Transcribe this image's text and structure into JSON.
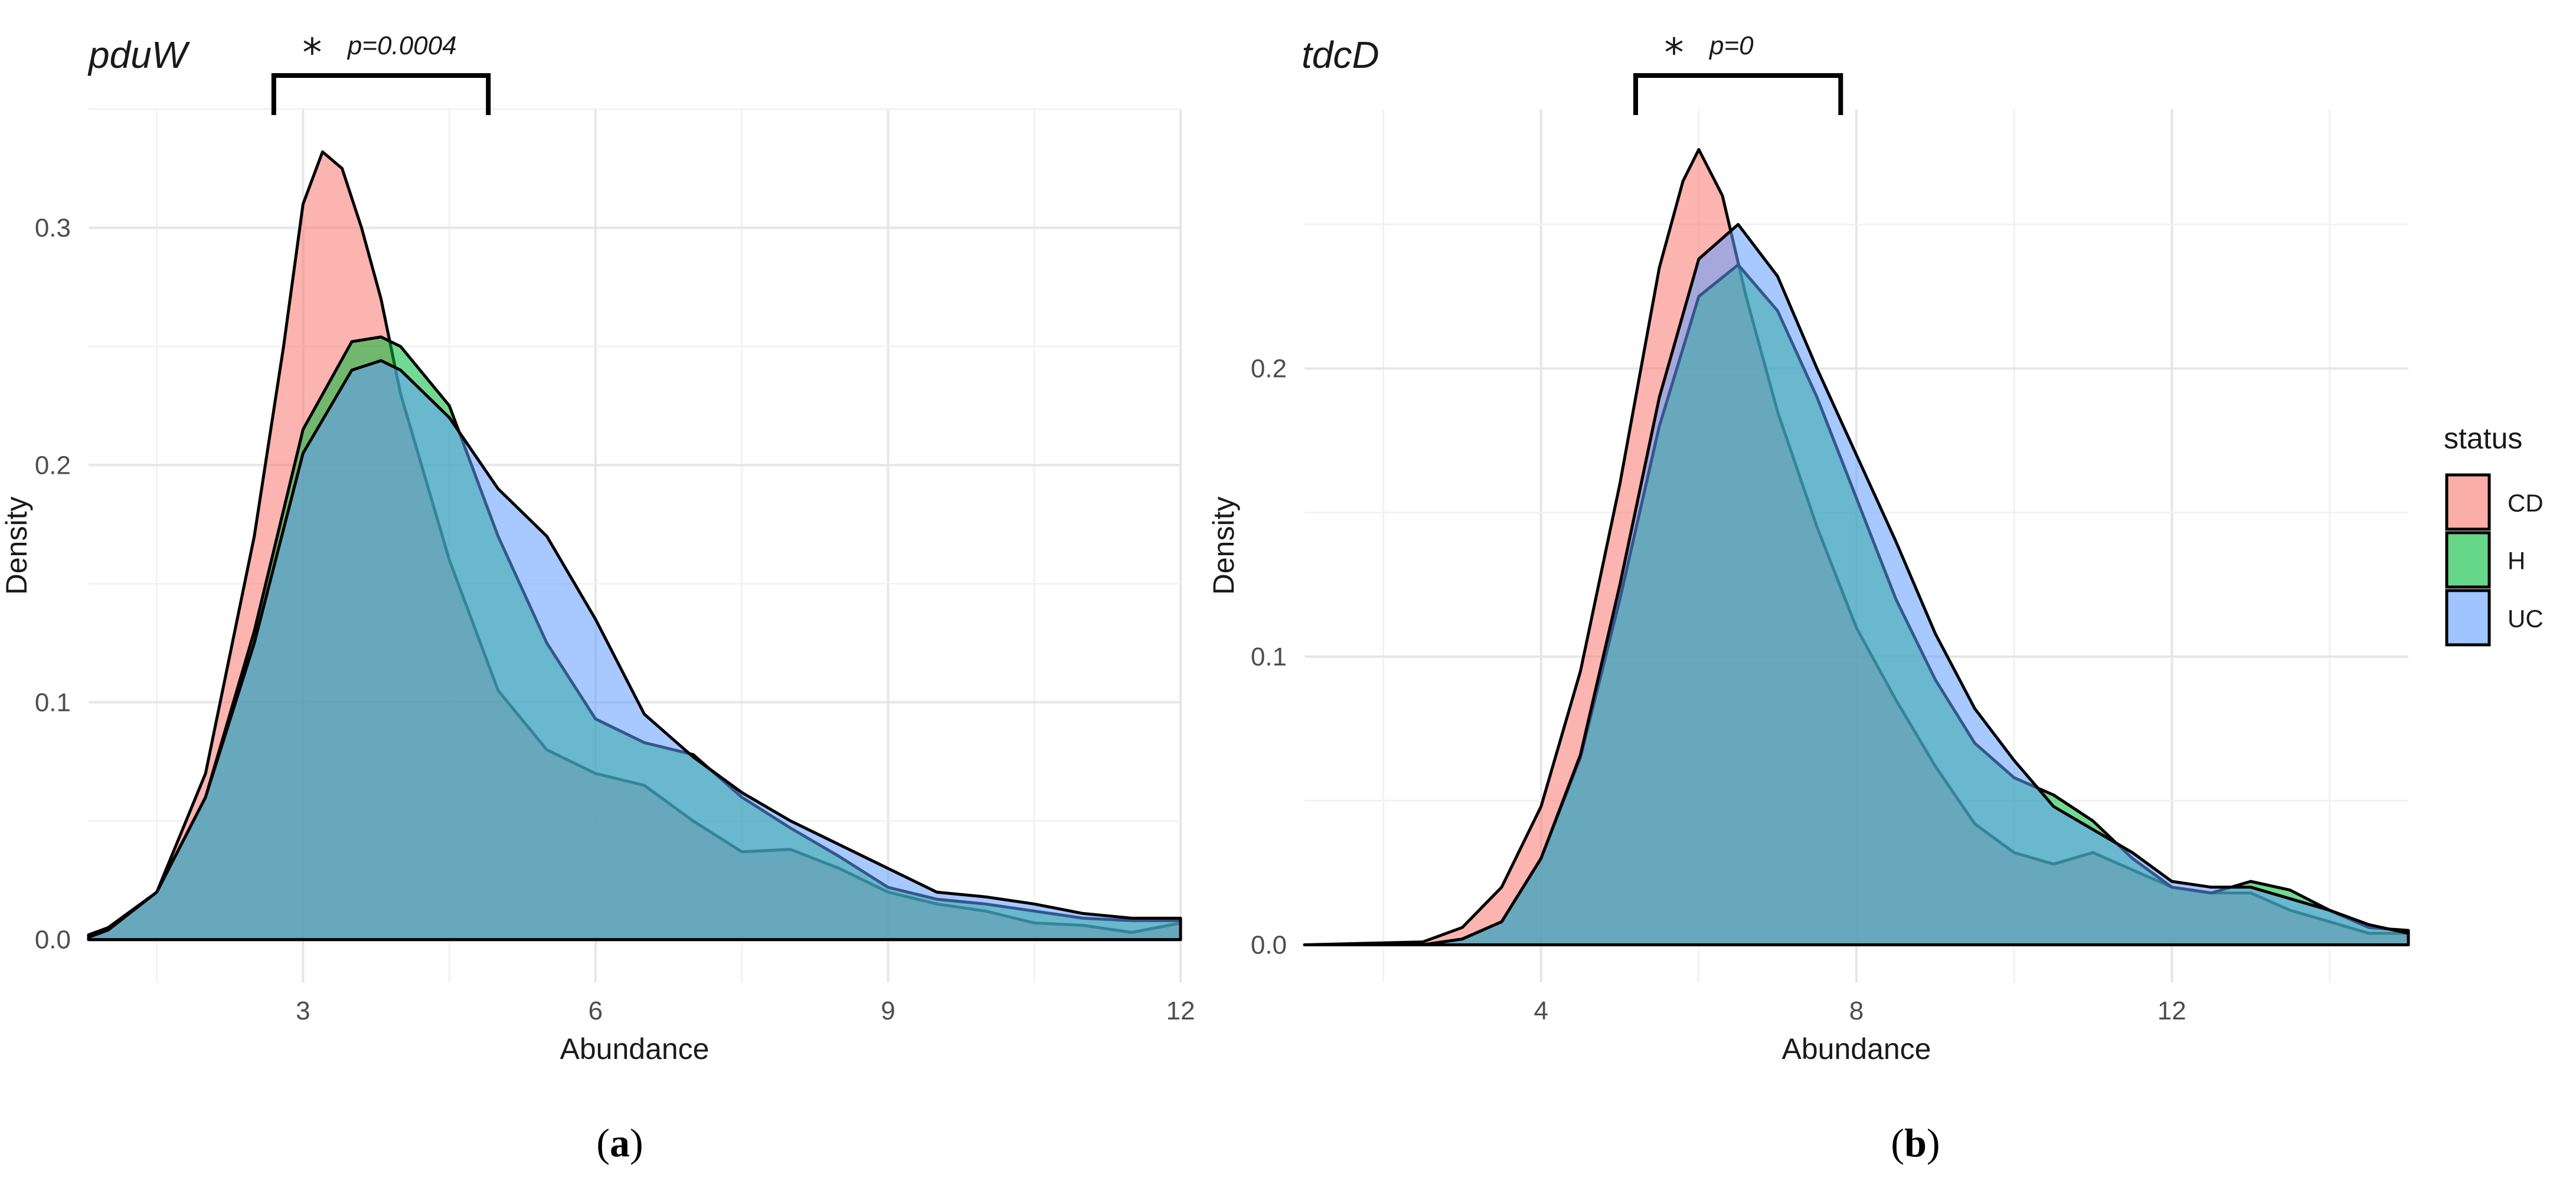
{
  "legend": {
    "title": "status",
    "items": [
      {
        "label": "CD",
        "color": "#F8766D"
      },
      {
        "label": "H",
        "color": "#00BA38"
      },
      {
        "label": "UC",
        "color": "#619CFF"
      }
    ],
    "placement": "right"
  },
  "chart_data": [
    {
      "type": "area",
      "subtype": "density",
      "title": "pduW",
      "xlabel": "Abundance",
      "ylabel": "Density",
      "xlim": [
        0.8,
        12.0
      ],
      "ylim": [
        -0.018,
        0.35
      ],
      "xticks": [
        3,
        6,
        9,
        12
      ],
      "xtick_labels": [
        "3",
        "6",
        "9",
        "12"
      ],
      "yticks": [
        0.0,
        0.1,
        0.2,
        0.3
      ],
      "ytick_labels": [
        "0.0",
        "0.1",
        "0.2",
        "0.3"
      ],
      "annotation": {
        "star": "*",
        "text": "p=0.0004",
        "bracket_x": [
          2.7,
          4.9
        ],
        "bracket_y": 0.347
      },
      "caption": {
        "open": "(",
        "letter": "a",
        "close": ")"
      },
      "series": [
        {
          "name": "CD",
          "x": [
            0.8,
            1.0,
            1.5,
            2.0,
            2.5,
            2.8,
            3.0,
            3.2,
            3.4,
            3.6,
            3.8,
            4.0,
            4.5,
            5.0,
            5.5,
            6.0,
            6.5,
            7.0,
            7.5,
            8.0,
            8.5,
            9.0,
            9.5,
            10.0,
            10.5,
            11.0,
            11.5,
            12.0
          ],
          "y": [
            0.002,
            0.005,
            0.02,
            0.07,
            0.17,
            0.25,
            0.31,
            0.332,
            0.325,
            0.3,
            0.27,
            0.23,
            0.16,
            0.105,
            0.08,
            0.07,
            0.065,
            0.05,
            0.037,
            0.038,
            0.03,
            0.02,
            0.015,
            0.012,
            0.007,
            0.006,
            0.003,
            0.007
          ]
        },
        {
          "name": "H",
          "x": [
            0.8,
            1.0,
            1.5,
            2.0,
            2.5,
            3.0,
            3.5,
            3.8,
            4.0,
            4.5,
            5.0,
            5.5,
            6.0,
            6.5,
            7.0,
            7.5,
            8.0,
            8.5,
            9.0,
            9.5,
            10.0,
            10.5,
            11.0,
            11.5,
            12.0
          ],
          "y": [
            0.001,
            0.004,
            0.02,
            0.06,
            0.13,
            0.215,
            0.252,
            0.254,
            0.25,
            0.225,
            0.17,
            0.125,
            0.093,
            0.083,
            0.078,
            0.06,
            0.047,
            0.035,
            0.022,
            0.017,
            0.015,
            0.012,
            0.009,
            0.008,
            0.008
          ]
        },
        {
          "name": "UC",
          "x": [
            0.8,
            1.0,
            1.5,
            2.0,
            2.5,
            3.0,
            3.5,
            3.8,
            4.0,
            4.5,
            5.0,
            5.5,
            6.0,
            6.5,
            7.0,
            7.5,
            8.0,
            8.5,
            9.0,
            9.5,
            10.0,
            10.5,
            11.0,
            11.5,
            12.0
          ],
          "y": [
            0.001,
            0.004,
            0.02,
            0.06,
            0.125,
            0.205,
            0.24,
            0.244,
            0.24,
            0.22,
            0.19,
            0.17,
            0.135,
            0.095,
            0.077,
            0.062,
            0.05,
            0.04,
            0.03,
            0.02,
            0.018,
            0.015,
            0.011,
            0.009,
            0.009
          ]
        }
      ]
    },
    {
      "type": "area",
      "subtype": "density",
      "title": "tdcD",
      "xlabel": "Abundance",
      "ylabel": "Density",
      "xlim": [
        1.0,
        15.0
      ],
      "ylim": [
        -0.013,
        0.29
      ],
      "xticks": [
        4,
        8,
        12
      ],
      "xtick_labels": [
        "4",
        "8",
        "12"
      ],
      "yticks": [
        0.0,
        0.1,
        0.2
      ],
      "ytick_labels": [
        "0.0",
        "0.1",
        "0.2"
      ],
      "annotation": {
        "star": "*",
        "text": "p=0",
        "bracket_x": [
          5.2,
          7.8
        ],
        "bracket_y": 0.29
      },
      "caption": {
        "open": "(",
        "letter": "b",
        "close": ")"
      },
      "series": [
        {
          "name": "CD",
          "x": [
            1.0,
            2.5,
            3.0,
            3.5,
            4.0,
            4.5,
            5.0,
            5.5,
            5.8,
            6.0,
            6.3,
            6.6,
            7.0,
            7.5,
            8.0,
            8.5,
            9.0,
            9.5,
            10.0,
            10.5,
            11.0,
            11.5,
            12.0,
            12.5,
            13.0,
            13.5,
            14.0,
            14.5,
            15.0
          ],
          "y": [
            0.0,
            0.001,
            0.006,
            0.02,
            0.048,
            0.095,
            0.16,
            0.235,
            0.265,
            0.276,
            0.26,
            0.225,
            0.185,
            0.145,
            0.11,
            0.085,
            0.062,
            0.042,
            0.032,
            0.028,
            0.032,
            0.026,
            0.02,
            0.018,
            0.018,
            0.012,
            0.008,
            0.004,
            0.004
          ]
        },
        {
          "name": "H",
          "x": [
            1.0,
            2.5,
            3.0,
            3.5,
            4.0,
            4.5,
            5.0,
            5.5,
            6.0,
            6.5,
            7.0,
            7.5,
            8.0,
            8.5,
            9.0,
            9.5,
            10.0,
            10.5,
            11.0,
            11.5,
            12.0,
            12.5,
            13.0,
            13.5,
            14.0,
            14.5,
            15.0
          ],
          "y": [
            0.0,
            0.0,
            0.002,
            0.008,
            0.03,
            0.065,
            0.12,
            0.18,
            0.225,
            0.236,
            0.22,
            0.19,
            0.155,
            0.12,
            0.092,
            0.07,
            0.058,
            0.052,
            0.043,
            0.03,
            0.02,
            0.018,
            0.022,
            0.019,
            0.012,
            0.006,
            0.005
          ]
        },
        {
          "name": "UC",
          "x": [
            1.0,
            2.5,
            3.0,
            3.5,
            4.0,
            4.5,
            5.0,
            5.5,
            6.0,
            6.5,
            7.0,
            7.5,
            8.0,
            8.5,
            9.0,
            9.5,
            10.0,
            10.5,
            11.0,
            11.5,
            12.0,
            12.5,
            13.0,
            13.5,
            14.0,
            14.5,
            15.0
          ],
          "y": [
            0.0,
            0.0,
            0.002,
            0.008,
            0.03,
            0.066,
            0.125,
            0.19,
            0.238,
            0.25,
            0.232,
            0.2,
            0.17,
            0.14,
            0.108,
            0.082,
            0.064,
            0.048,
            0.04,
            0.032,
            0.022,
            0.02,
            0.02,
            0.016,
            0.012,
            0.007,
            0.004
          ]
        }
      ]
    }
  ]
}
